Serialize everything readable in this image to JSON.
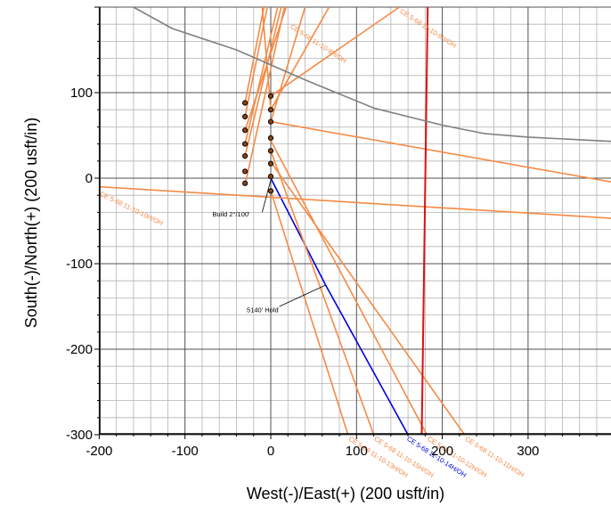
{
  "chart_data": {
    "type": "line",
    "xlabel": "West(-)/East(+) (200 usft/in)",
    "ylabel": "South(-)/North(+) (200 usft/in)",
    "xlim": [
      -200,
      397
    ],
    "ylim": [
      -300,
      200
    ],
    "x_ticks": [
      -200,
      -100,
      0,
      100,
      200,
      300
    ],
    "y_ticks": [
      -300,
      -200,
      -100,
      0,
      100
    ],
    "x_tick_labels": [
      "-200",
      "-100",
      "0",
      "100",
      "200",
      "300"
    ],
    "y_tick_labels": [
      "-300",
      "-200",
      "-100",
      "0",
      "100"
    ],
    "grid": true,
    "colors": {
      "main_wellbore": "#0000e0",
      "offset_wells": "#f58a45",
      "lease_line_red": "#e01010",
      "boundary_gray": "#808080",
      "grid_major": "#505050",
      "grid_minor": "#b4b4b4"
    },
    "series": [
      {
        "name": "CE 5-68 11-10-14H/OH",
        "role": "main",
        "points": [
          [
            0,
            0
          ],
          [
            64,
            -125
          ],
          [
            160,
            -300
          ]
        ],
        "label_at": [
          158,
          -306
        ]
      },
      {
        "name": "CE 5-68 11-10-10H/OH",
        "role": "offset",
        "points": [
          [
            -200,
            -10
          ],
          [
            400,
            -47
          ]
        ],
        "label_at": [
          -200,
          -20
        ]
      },
      {
        "name": "CE 5-68 11-10-9H/OH",
        "role": "offset",
        "points": [
          [
            0,
            96
          ],
          [
            150,
            200
          ]
        ],
        "label_at": [
          150,
          194
        ]
      },
      {
        "name": "CE 5-68 11-10-8H/OH",
        "role": "offset",
        "points": [
          [
            -30,
            56
          ],
          [
            18,
            200
          ]
        ],
        "label_at": [
          22,
          176
        ]
      },
      {
        "name": "CE 5-68 11-10-13H/OH",
        "role": "offset",
        "points": [
          [
            0,
            -15
          ],
          [
            90,
            -300
          ]
        ],
        "label_at": [
          90,
          -306
        ]
      },
      {
        "name": "CE 5-68 11-10-15H/OH",
        "role": "offset",
        "points": [
          [
            0,
            32
          ],
          [
            120,
            -300
          ]
        ],
        "label_at": [
          120,
          -306
        ]
      },
      {
        "name": "CE 5-68 11-10-12H/OH",
        "role": "offset",
        "points": [
          [
            0,
            44
          ],
          [
            182,
            -300
          ]
        ],
        "label_at": [
          182,
          -306
        ]
      },
      {
        "name": "CE 5-68 11-10-11H/OH",
        "role": "offset",
        "points": [
          [
            0,
            19
          ],
          [
            226,
            -300
          ]
        ],
        "label_at": [
          226,
          -306
        ]
      },
      {
        "name": "",
        "role": "offset",
        "points": [
          [
            0,
            66
          ],
          [
            400,
            -5
          ]
        ]
      },
      {
        "name": "",
        "role": "offset",
        "points": [
          [
            0,
            80
          ],
          [
            -10,
            200
          ]
        ]
      },
      {
        "name": "",
        "role": "offset",
        "points": [
          [
            -30,
            88
          ],
          [
            -8,
            200
          ]
        ]
      },
      {
        "name": "",
        "role": "offset",
        "points": [
          [
            -30,
            72
          ],
          [
            -4,
            200
          ]
        ]
      },
      {
        "name": "",
        "role": "offset",
        "points": [
          [
            -30,
            40
          ],
          [
            8,
            200
          ]
        ]
      },
      {
        "name": "",
        "role": "offset",
        "points": [
          [
            -30,
            26
          ],
          [
            12,
            200
          ]
        ]
      },
      {
        "name": "",
        "role": "offset",
        "points": [
          [
            -30,
            -8
          ],
          [
            16,
            200
          ]
        ]
      },
      {
        "name": "",
        "role": "offset",
        "points": [
          [
            0,
            80
          ],
          [
            68,
            200
          ]
        ]
      },
      {
        "name": "",
        "role": "offset",
        "points": [
          [
            0,
            66
          ],
          [
            40,
            200
          ]
        ]
      },
      {
        "name": "",
        "role": "lease",
        "points": [
          [
            183,
            200
          ],
          [
            176,
            -300
          ]
        ]
      },
      {
        "name": "",
        "role": "boundary",
        "points": [
          [
            -160,
            200
          ],
          [
            -115,
            175
          ],
          [
            -40,
            150
          ],
          [
            40,
            115
          ],
          [
            120,
            82
          ],
          [
            200,
            62
          ],
          [
            250,
            52
          ],
          [
            300,
            48
          ],
          [
            397,
            43
          ]
        ]
      }
    ],
    "markers": [
      [
        -30,
        88
      ],
      [
        -30,
        72
      ],
      [
        -30,
        56
      ],
      [
        -30,
        40
      ],
      [
        -30,
        26
      ],
      [
        -30,
        8
      ],
      [
        -30,
        -6
      ],
      [
        0,
        96
      ],
      [
        0,
        80
      ],
      [
        0,
        66
      ],
      [
        0,
        47
      ],
      [
        0,
        32
      ],
      [
        0,
        17
      ],
      [
        0,
        2
      ],
      [
        0,
        -15
      ]
    ],
    "annotations": [
      {
        "text": "Build 2°/100'",
        "text_at": [
          -68,
          -45
        ],
        "leader": [
          [
            -10,
            -40
          ],
          [
            0,
            -2
          ]
        ]
      },
      {
        "text": "5140' Hold",
        "text_at": [
          -28,
          -157
        ],
        "leader": [
          [
            10,
            -150
          ],
          [
            64,
            -125
          ]
        ]
      }
    ]
  }
}
